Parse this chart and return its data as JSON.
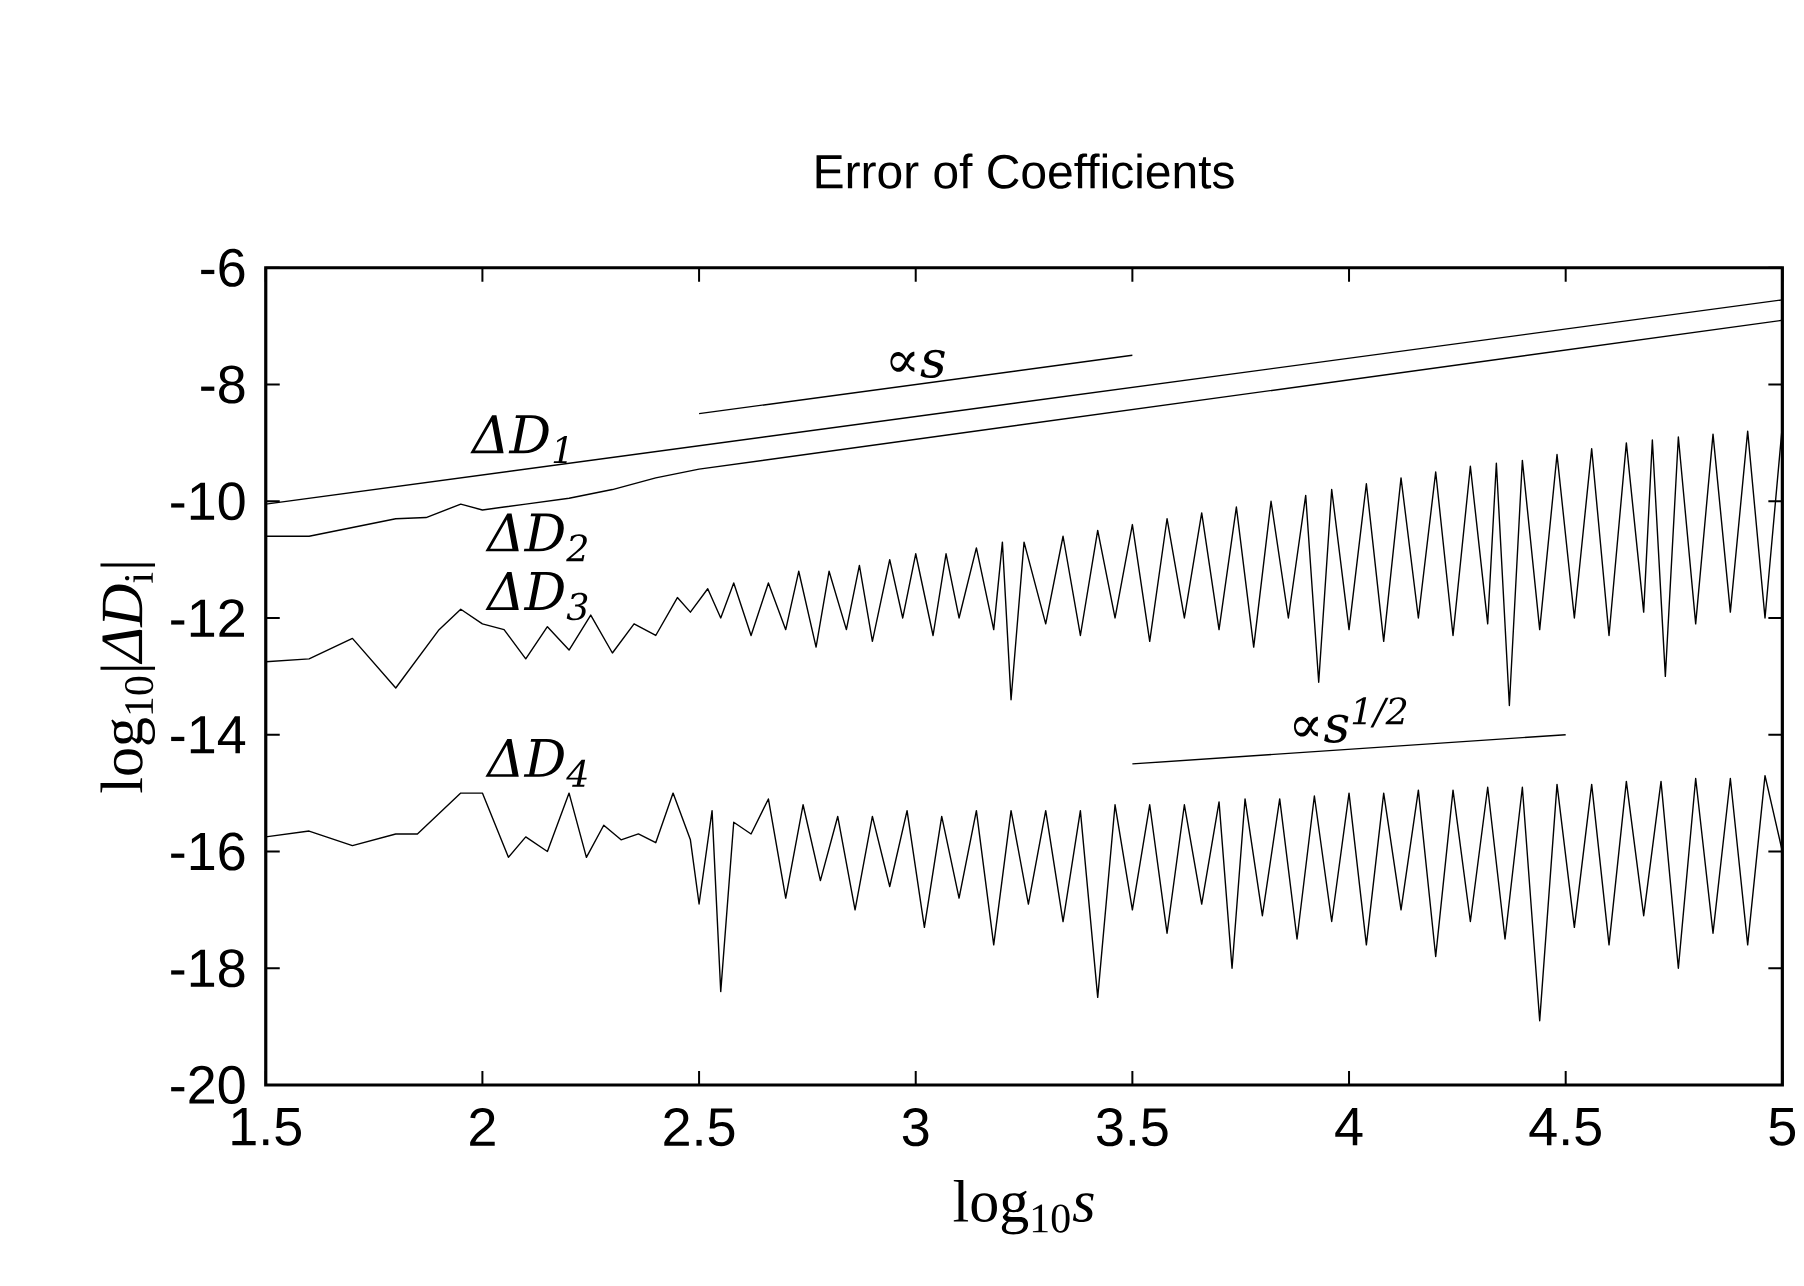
{
  "chart_data": {
    "type": "line",
    "title": "Error of Coefficients",
    "xlabel": "log$_{10}$*s*",
    "ylabel": "log$_{10}$|*ΔD*$_{i}$|",
    "xlim": [
      1.5,
      5
    ],
    "ylim": [
      -20,
      -6
    ],
    "xticks": [
      1.5,
      2,
      2.5,
      3,
      3.5,
      4,
      4.5,
      5
    ],
    "yticks": [
      -20,
      -18,
      -16,
      -14,
      -12,
      -10,
      -8,
      -6
    ],
    "grid": false,
    "marker": "none",
    "line_style": "solid",
    "series": [
      {
        "name": "*ΔD*$_{1}$",
        "color": "#000000",
        "x": [
          1.5,
          5
        ],
        "values": [
          -10.05,
          -6.55
        ]
      },
      {
        "name": "*ΔD*$_{2}$",
        "color": "#000000",
        "x": [
          1.5,
          1.6,
          1.7,
          1.8,
          1.87,
          1.95,
          2.0,
          2.05,
          2.1,
          2.2,
          2.3,
          2.4,
          2.5,
          5.0
        ],
        "values": [
          -10.6,
          -10.6,
          -10.45,
          -10.3,
          -10.28,
          -10.05,
          -10.15,
          -10.1,
          -10.05,
          -9.95,
          -9.8,
          -9.6,
          -9.45,
          -6.9
        ]
      },
      {
        "name": "*ΔD*$_{3}$",
        "color": "#000000",
        "x": [
          1.5,
          1.6,
          1.7,
          1.8,
          1.9,
          1.95,
          2.0,
          2.05,
          2.1,
          2.15,
          2.2,
          2.25,
          2.3,
          2.35,
          2.4,
          2.45,
          2.48,
          2.52,
          2.55,
          2.58,
          2.62,
          2.66,
          2.7,
          2.73,
          2.77,
          2.8,
          2.84,
          2.87,
          2.9,
          2.94,
          2.97,
          3.0,
          3.04,
          3.07,
          3.1,
          3.14,
          3.18,
          3.2,
          3.22,
          3.25,
          3.3,
          3.34,
          3.38,
          3.42,
          3.46,
          3.5,
          3.54,
          3.58,
          3.62,
          3.66,
          3.7,
          3.74,
          3.78,
          3.82,
          3.86,
          3.9,
          3.93,
          3.96,
          4.0,
          4.04,
          4.08,
          4.12,
          4.16,
          4.2,
          4.24,
          4.28,
          4.32,
          4.34,
          4.37,
          4.4,
          4.44,
          4.48,
          4.52,
          4.56,
          4.6,
          4.64,
          4.68,
          4.7,
          4.73,
          4.76,
          4.8,
          4.84,
          4.88,
          4.92,
          4.96,
          5.0
        ],
        "values": [
          -12.75,
          -12.7,
          -12.35,
          -13.2,
          -12.2,
          -11.85,
          -12.1,
          -12.2,
          -12.7,
          -12.15,
          -12.55,
          -11.95,
          -12.6,
          -12.1,
          -12.3,
          -11.65,
          -11.9,
          -11.5,
          -12.0,
          -11.4,
          -12.3,
          -11.4,
          -12.2,
          -11.2,
          -12.5,
          -11.2,
          -12.2,
          -11.1,
          -12.4,
          -11.0,
          -12.0,
          -10.9,
          -12.3,
          -10.9,
          -12.0,
          -10.8,
          -12.2,
          -10.7,
          -13.4,
          -10.7,
          -12.1,
          -10.6,
          -12.3,
          -10.5,
          -12.0,
          -10.4,
          -12.4,
          -10.3,
          -12.0,
          -10.2,
          -12.2,
          -10.1,
          -12.5,
          -10.0,
          -12.0,
          -9.9,
          -13.1,
          -9.8,
          -12.2,
          -9.7,
          -12.4,
          -9.6,
          -12.0,
          -9.5,
          -12.3,
          -9.4,
          -12.1,
          -9.35,
          -13.5,
          -9.3,
          -12.2,
          -9.2,
          -12.0,
          -9.1,
          -12.3,
          -9.0,
          -11.9,
          -8.95,
          -13.0,
          -8.9,
          -12.1,
          -8.85,
          -11.9,
          -8.8,
          -12.0,
          -8.7
        ]
      },
      {
        "name": "*ΔD*$_{4}$",
        "color": "#000000",
        "x": [
          1.5,
          1.6,
          1.7,
          1.8,
          1.85,
          1.95,
          2.0,
          2.06,
          2.1,
          2.15,
          2.2,
          2.24,
          2.28,
          2.32,
          2.36,
          2.4,
          2.44,
          2.48,
          2.5,
          2.53,
          2.55,
          2.58,
          2.62,
          2.66,
          2.7,
          2.74,
          2.78,
          2.82,
          2.86,
          2.9,
          2.94,
          2.98,
          3.02,
          3.06,
          3.1,
          3.14,
          3.18,
          3.22,
          3.26,
          3.3,
          3.34,
          3.38,
          3.42,
          3.46,
          3.5,
          3.54,
          3.58,
          3.62,
          3.66,
          3.7,
          3.73,
          3.76,
          3.8,
          3.84,
          3.88,
          3.92,
          3.96,
          4.0,
          4.04,
          4.08,
          4.12,
          4.16,
          4.2,
          4.24,
          4.28,
          4.32,
          4.36,
          4.4,
          4.44,
          4.48,
          4.52,
          4.56,
          4.6,
          4.64,
          4.68,
          4.72,
          4.76,
          4.8,
          4.84,
          4.88,
          4.92,
          4.96,
          5.0
        ],
        "values": [
          -15.75,
          -15.65,
          -15.9,
          -15.7,
          -15.7,
          -15.0,
          -15.0,
          -16.1,
          -15.75,
          -16.0,
          -15.0,
          -16.1,
          -15.55,
          -15.8,
          -15.7,
          -15.85,
          -15.0,
          -15.8,
          -16.9,
          -15.3,
          -18.4,
          -15.5,
          -15.7,
          -15.1,
          -16.8,
          -15.2,
          -16.5,
          -15.4,
          -17.0,
          -15.4,
          -16.6,
          -15.3,
          -17.3,
          -15.4,
          -16.8,
          -15.3,
          -17.6,
          -15.3,
          -16.9,
          -15.3,
          -17.2,
          -15.3,
          -18.5,
          -15.2,
          -17.0,
          -15.2,
          -17.4,
          -15.2,
          -16.9,
          -15.15,
          -18.0,
          -15.1,
          -17.1,
          -15.1,
          -17.5,
          -15.05,
          -17.2,
          -15.0,
          -17.6,
          -15.0,
          -17.0,
          -14.95,
          -17.8,
          -14.95,
          -17.2,
          -14.9,
          -17.5,
          -14.9,
          -18.9,
          -14.85,
          -17.3,
          -14.85,
          -17.6,
          -14.8,
          -17.1,
          -14.8,
          -18.0,
          -14.75,
          -17.4,
          -14.75,
          -17.6,
          -14.7,
          -16.0
        ]
      },
      {
        "name": "∝*s*",
        "color": "#000000",
        "x": [
          2.5,
          3.5
        ],
        "values": [
          -8.5,
          -7.5
        ]
      },
      {
        "name": "∝*s*$^{1/2}$",
        "color": "#000000",
        "x": [
          3.5,
          4.5
        ],
        "values": [
          -14.5,
          -14.0
        ]
      }
    ]
  }
}
